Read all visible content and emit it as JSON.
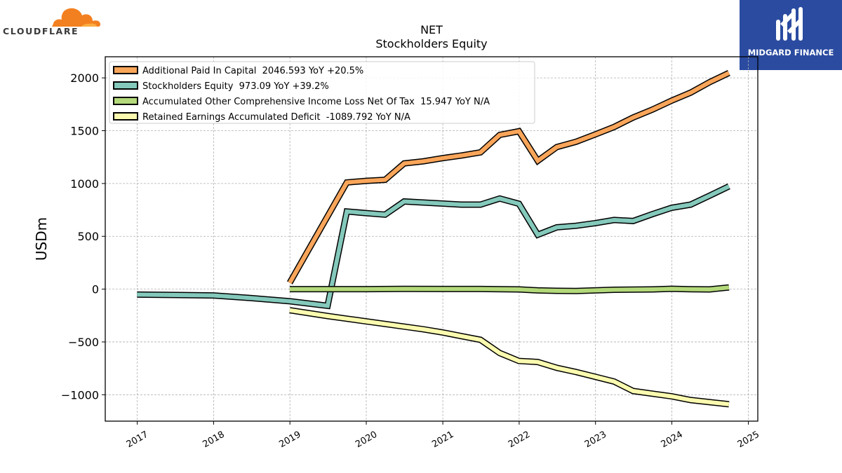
{
  "branding": {
    "left_logo_text": "CLOUDFLARE",
    "left_logo_color": "#f38020",
    "right_logo_text": "MIDGARD FINANCE",
    "right_logo_bg": "#2a4ba0"
  },
  "chart_data": {
    "type": "line",
    "title": "NET",
    "subtitle": "Stockholders  Equity",
    "xlabel": "",
    "ylabel": "USDm",
    "ylim": [
      -1250,
      2200
    ],
    "yticks": [
      -1000,
      -500,
      0,
      500,
      1000,
      1500,
      2000
    ],
    "ytick_labels": [
      "−1000",
      "−500",
      "0",
      "500",
      "1000",
      "1500",
      "2000"
    ],
    "xlim": [
      "2016-08-01",
      "2025-02-15"
    ],
    "xticks": [
      "2017-01-01",
      "2018-01-01",
      "2019-01-01",
      "2020-01-01",
      "2021-01-01",
      "2022-01-01",
      "2023-01-01",
      "2024-01-01",
      "2025-01-01"
    ],
    "xtick_labels": [
      "2017",
      "2018",
      "2019",
      "2020",
      "2021",
      "2022",
      "2023",
      "2024",
      "2025"
    ],
    "grid": true,
    "legend_position": "top-left",
    "series": [
      {
        "name": "Additional Paid In Capital  2046.593 YoY +20.5%",
        "color": "#f9a55a",
        "points": [
          [
            "2018-12-31",
            60
          ],
          [
            "2019-09-30",
            1010
          ],
          [
            "2019-12-31",
            1025
          ],
          [
            "2020-03-31",
            1035
          ],
          [
            "2020-06-30",
            1190
          ],
          [
            "2020-09-30",
            1210
          ],
          [
            "2020-12-31",
            1240
          ],
          [
            "2021-03-31",
            1265
          ],
          [
            "2021-06-30",
            1295
          ],
          [
            "2021-09-30",
            1460
          ],
          [
            "2021-12-31",
            1495
          ],
          [
            "2022-03-31",
            1215
          ],
          [
            "2022-06-30",
            1345
          ],
          [
            "2022-09-30",
            1395
          ],
          [
            "2022-12-31",
            1465
          ],
          [
            "2023-03-31",
            1535
          ],
          [
            "2023-06-30",
            1625
          ],
          [
            "2023-09-30",
            1700
          ],
          [
            "2023-12-31",
            1785
          ],
          [
            "2024-03-31",
            1860
          ],
          [
            "2024-06-30",
            1960
          ],
          [
            "2024-09-30",
            2046.593
          ]
        ]
      },
      {
        "name": "Stockholders Equity  973.09 YoY +39.2%",
        "color": "#84c9bb",
        "points": [
          [
            "2016-12-31",
            -52
          ],
          [
            "2017-12-31",
            -60
          ],
          [
            "2018-06-30",
            -85
          ],
          [
            "2018-12-31",
            -115
          ],
          [
            "2019-06-30",
            -158
          ],
          [
            "2019-09-30",
            735
          ],
          [
            "2019-12-31",
            720
          ],
          [
            "2020-03-31",
            705
          ],
          [
            "2020-06-30",
            830
          ],
          [
            "2020-09-30",
            820
          ],
          [
            "2020-12-31",
            810
          ],
          [
            "2021-03-31",
            800
          ],
          [
            "2021-06-30",
            800
          ],
          [
            "2021-09-30",
            858
          ],
          [
            "2021-12-31",
            808
          ],
          [
            "2022-03-31",
            515
          ],
          [
            "2022-06-30",
            585
          ],
          [
            "2022-09-30",
            600
          ],
          [
            "2022-12-31",
            625
          ],
          [
            "2023-03-31",
            655
          ],
          [
            "2023-06-30",
            645
          ],
          [
            "2023-09-30",
            710
          ],
          [
            "2023-12-31",
            770
          ],
          [
            "2024-03-31",
            800
          ],
          [
            "2024-06-30",
            885
          ],
          [
            "2024-09-30",
            973.09
          ]
        ]
      },
      {
        "name": "Accumulated Other Comprehensive Income Loss Net Of Tax  15.947 YoY N/A",
        "color": "#b3d97a",
        "points": [
          [
            "2018-12-31",
            0
          ],
          [
            "2019-06-30",
            0
          ],
          [
            "2019-12-31",
            0
          ],
          [
            "2020-06-30",
            2
          ],
          [
            "2020-12-31",
            1
          ],
          [
            "2021-06-30",
            1
          ],
          [
            "2021-12-31",
            -3
          ],
          [
            "2022-03-31",
            -12
          ],
          [
            "2022-06-30",
            -16
          ],
          [
            "2022-09-30",
            -18
          ],
          [
            "2022-12-31",
            -12
          ],
          [
            "2023-03-31",
            -6
          ],
          [
            "2023-06-30",
            -5
          ],
          [
            "2023-09-30",
            -3
          ],
          [
            "2023-12-31",
            3
          ],
          [
            "2024-03-31",
            -1
          ],
          [
            "2024-06-30",
            -3
          ],
          [
            "2024-09-30",
            15.947
          ]
        ]
      },
      {
        "name": "Retained Earnings Accumulated Deficit  -1089.792 YoY N/A",
        "color": "#fbfbb0",
        "points": [
          [
            "2018-12-31",
            -200
          ],
          [
            "2019-06-30",
            -255
          ],
          [
            "2019-09-30",
            -280
          ],
          [
            "2019-12-31",
            -305
          ],
          [
            "2020-03-31",
            -330
          ],
          [
            "2020-06-30",
            -355
          ],
          [
            "2020-09-30",
            -380
          ],
          [
            "2020-12-31",
            -410
          ],
          [
            "2021-03-31",
            -445
          ],
          [
            "2021-06-30",
            -480
          ],
          [
            "2021-09-30",
            -605
          ],
          [
            "2021-12-31",
            -680
          ],
          [
            "2022-03-31",
            -690
          ],
          [
            "2022-06-30",
            -745
          ],
          [
            "2022-09-30",
            -785
          ],
          [
            "2022-12-31",
            -830
          ],
          [
            "2023-03-31",
            -875
          ],
          [
            "2023-06-30",
            -965
          ],
          [
            "2023-09-30",
            -990
          ],
          [
            "2023-12-31",
            -1015
          ],
          [
            "2024-03-31",
            -1050
          ],
          [
            "2024-06-30",
            -1070
          ],
          [
            "2024-09-30",
            -1089.792
          ]
        ]
      }
    ]
  }
}
